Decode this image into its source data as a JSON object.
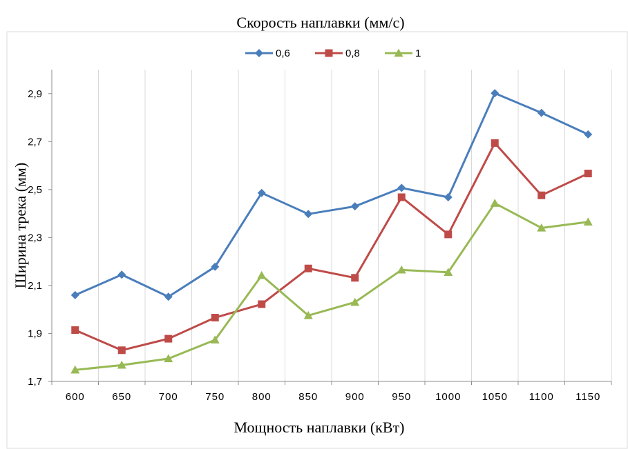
{
  "chart_data": {
    "type": "line",
    "title": "Скорость наплавки (мм/с)",
    "xlabel": "Мощность наплавки (кВт)",
    "ylabel": "Ширина трека (мм)",
    "categories": [
      "600",
      "650",
      "700",
      "750",
      "800",
      "850",
      "900",
      "950",
      "1000",
      "1050",
      "1100",
      "1150"
    ],
    "ylim": [
      1.7,
      3.0
    ],
    "yticks": [
      "1,7",
      "1,9",
      "2,1",
      "2,3",
      "2,5",
      "2,7",
      "2,9"
    ],
    "ytick_values": [
      1.7,
      1.9,
      2.1,
      2.3,
      2.5,
      2.7,
      2.9
    ],
    "grid": "vertical",
    "legend": "top-center",
    "series": [
      {
        "name": "0,6",
        "color": "#4a7ebb",
        "marker": "diamond",
        "values": [
          2.06,
          2.145,
          2.053,
          2.178,
          2.486,
          2.398,
          2.43,
          2.507,
          2.468,
          2.902,
          2.82,
          2.73
        ]
      },
      {
        "name": "0,8",
        "color": "#be4b48",
        "marker": "square",
        "values": [
          1.914,
          1.83,
          1.878,
          1.966,
          2.022,
          2.171,
          2.132,
          2.468,
          2.313,
          2.694,
          2.476,
          2.567
        ]
      },
      {
        "name": "1",
        "color": "#98b954",
        "marker": "triangle",
        "values": [
          1.748,
          1.768,
          1.795,
          1.873,
          2.142,
          1.975,
          2.03,
          2.165,
          2.155,
          2.443,
          2.34,
          2.365
        ]
      }
    ]
  }
}
